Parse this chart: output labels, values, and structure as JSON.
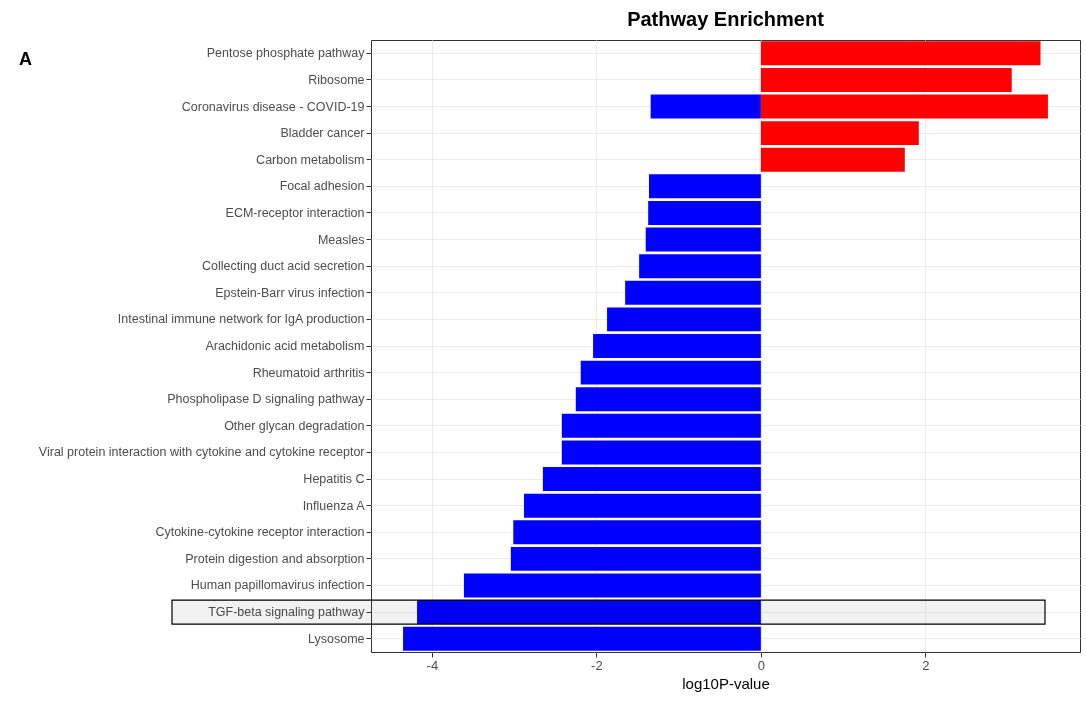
{
  "chart_data": {
    "type": "bar",
    "orientation": "horizontal",
    "title": "Pathway Enrichment",
    "xlabel": "log10P-value",
    "annotations": [
      "A"
    ],
    "categories": [
      "Pentose phosphate pathway",
      "Ribosome",
      "Coronavirus disease - COVID-19",
      "Bladder cancer",
      "Carbon metabolism",
      "Focal adhesion",
      "ECM-receptor interaction",
      "Measles",
      "Collecting duct acid secretion",
      "Epstein-Barr virus infection",
      "Intestinal immune network for IgA production",
      "Arachidonic acid metabolism",
      "Rheumatoid arthritis",
      "Phospholipase D signaling pathway",
      "Other glycan degradation",
      "Viral protein interaction with cytokine and cytokine receptor",
      "Hepatitis C",
      "Influenza A",
      "Cytokine-cytokine receptor interaction",
      "Protein digestion and absorption",
      "Human papillomavirus infection",
      "TGF-beta signaling pathway",
      "Lysosome"
    ],
    "series": [
      {
        "color": "#ff0000",
        "values": [
          3.4,
          3.05,
          3.49,
          1.92,
          1.75,
          null,
          null,
          null,
          null,
          null,
          null,
          null,
          null,
          null,
          null,
          null,
          null,
          null,
          null,
          null,
          null,
          null,
          null
        ]
      },
      {
        "color": "#0000ff",
        "values": [
          null,
          null,
          -1.34,
          null,
          null,
          -1.36,
          -1.37,
          -1.4,
          -1.48,
          -1.65,
          -1.87,
          -2.04,
          -2.19,
          -2.25,
          -2.42,
          -2.42,
          -2.65,
          -2.88,
          -3.01,
          -3.04,
          -3.61,
          -4.18,
          -4.35
        ]
      }
    ],
    "xlim": [
      -4.74,
      3.88
    ],
    "xticks": [
      -4,
      -2,
      0,
      2
    ],
    "grid": true,
    "bands": [
      {
        "axis": "y",
        "from": "TGF-beta signaling pathway",
        "to": "TGF-beta signaling pathway",
        "color": "#000000"
      }
    ]
  }
}
